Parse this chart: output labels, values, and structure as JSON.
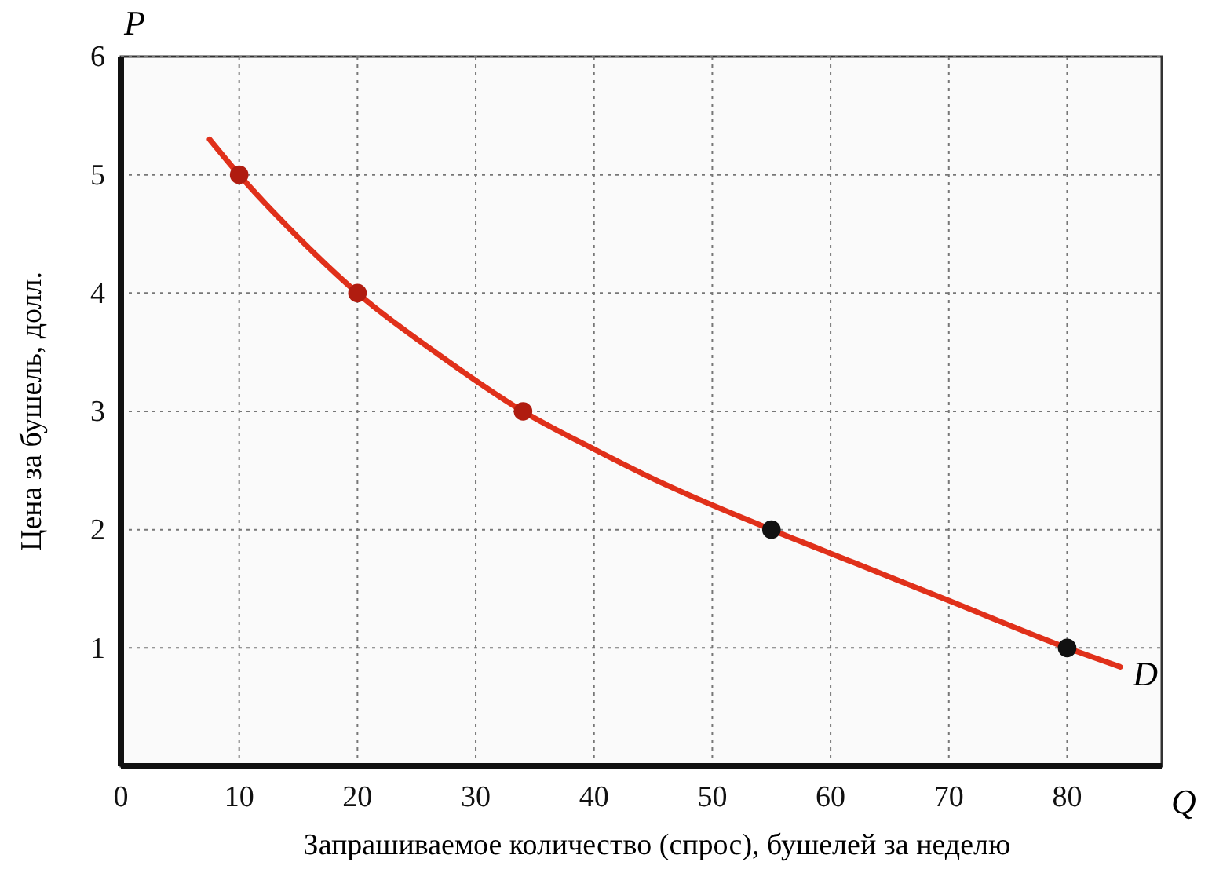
{
  "chart_data": {
    "type": "line",
    "xlabel": "Запрашиваемое количество (спрос), бушелей за неделю",
    "ylabel": "Цена за бушель, долл.",
    "xlim": [
      0,
      88
    ],
    "ylim": [
      0,
      6
    ],
    "xticks": [
      0,
      10,
      20,
      30,
      40,
      50,
      60,
      70,
      80
    ],
    "yticks": [
      1,
      2,
      3,
      4,
      5,
      6
    ],
    "grid": true,
    "series": [
      {
        "color": "#e0301a",
        "x": [
          7.5,
          10,
          15,
          20,
          27,
          34,
          40,
          45,
          55,
          62,
          70,
          80,
          84.5
        ],
        "values": [
          5.3,
          5,
          4.47,
          4,
          3.47,
          3,
          2.68,
          2.43,
          2,
          1.72,
          1.4,
          1,
          0.84
        ],
        "marker": "none"
      },
      {
        "type": "scatter",
        "x": [
          10,
          20,
          34,
          55,
          80
        ],
        "values": [
          5,
          4,
          3,
          2,
          1
        ],
        "colors": [
          "#b01c10",
          "#b01c10",
          "#b01c10",
          "#111111",
          "#111111"
        ],
        "marker": "circle"
      }
    ],
    "annotations": [
      "P",
      "Q",
      "D"
    ]
  }
}
